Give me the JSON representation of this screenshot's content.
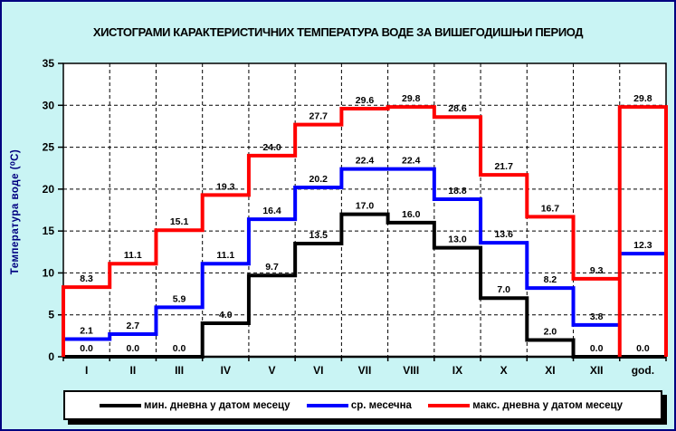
{
  "window": {
    "background": "#C9F4F4",
    "border_color": "#000080"
  },
  "chart_data": {
    "type": "line",
    "subtype": "step-histogram",
    "title": "ХИСТОГРАМИ КАРАКТЕРИСТИЧНИХ ТЕМПЕРАТУРА ВОДЕ ЗА ВИШЕГОДИШЊИ ПЕРИОД",
    "ylabel": "Температура воде (⁰C)",
    "xlabel": "",
    "ylim": [
      0,
      35
    ],
    "ytick_step": 5,
    "grid": "dashed",
    "legend_position": "bottom",
    "categories": [
      "I",
      "II",
      "III",
      "IV",
      "V",
      "VI",
      "VII",
      "VIII",
      "IX",
      "X",
      "XI",
      "XII",
      "god."
    ],
    "series": [
      {
        "name": "мин. дневна у датом месецу",
        "color": "#000000",
        "annual_style": "segment",
        "values": [
          0.0,
          0.0,
          0.0,
          4.0,
          9.7,
          13.5,
          17.0,
          16.0,
          13.0,
          7.0,
          2.0,
          0.0,
          0.0
        ]
      },
      {
        "name": "ср. месечна",
        "color": "#0000FF",
        "annual_style": "segment",
        "values": [
          2.1,
          2.7,
          5.9,
          11.1,
          16.4,
          20.2,
          22.4,
          22.4,
          18.8,
          13.6,
          8.2,
          3.8,
          12.3
        ]
      },
      {
        "name": "макс. дневна у датом месецу",
        "color": "#FF0000",
        "annual_style": "bar",
        "values": [
          8.3,
          11.1,
          15.1,
          19.3,
          24.0,
          27.7,
          29.6,
          29.8,
          28.6,
          21.7,
          16.7,
          9.3,
          29.8
        ]
      }
    ]
  }
}
